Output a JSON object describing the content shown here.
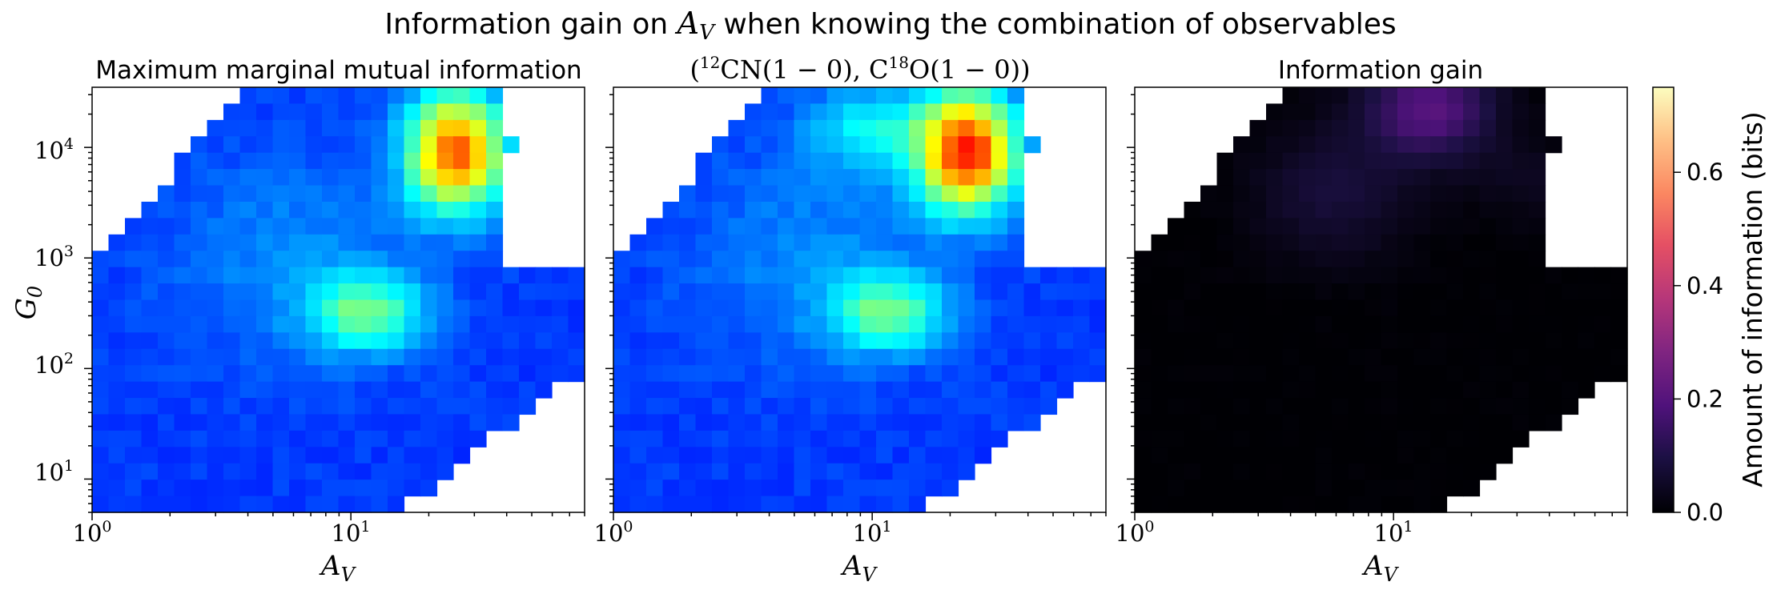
{
  "figure": {
    "title_prefix": "Information gain on ",
    "title_var": "A",
    "title_var_sub": "V",
    "title_suffix": " when knowing the combination of observables",
    "panel_titles": [
      "Maximum marginal mutual information",
      "",
      "Information gain"
    ],
    "middle_title_parts": {
      "open": "(",
      "sup1": "12",
      "mol1": "CN",
      "trans1": "(1 − 0), C",
      "sup2": "18",
      "mol2": "O",
      "trans2": "(1 − 0))"
    }
  },
  "chart_data": [
    {
      "type": "heatmap",
      "title": "Maximum marginal mutual information",
      "xlabel": "A_V",
      "ylabel": "G_0",
      "xscale": "log",
      "yscale": "log",
      "xlim": [
        1,
        80
      ],
      "ylim": [
        5,
        35000
      ],
      "x_tick_labels": [
        "10^0",
        "10^1"
      ],
      "y_tick_labels": [
        "10^1",
        "10^2",
        "10^3",
        "10^4"
      ],
      "colormap": "jet",
      "grid": false,
      "features": [
        {
          "name": "peak",
          "log_av": 1.4,
          "log_g0": 4.15,
          "value": 0.85
        },
        {
          "name": "secondary",
          "log_av": 1.08,
          "log_g0": 2.45,
          "value": 0.55
        }
      ]
    },
    {
      "type": "heatmap",
      "title": "(12CN(1 − 0), C18O(1 − 0))",
      "xlabel": "A_V",
      "xscale": "log",
      "yscale": "log",
      "xlim": [
        1,
        80
      ],
      "ylim": [
        5,
        35000
      ],
      "x_tick_labels": [
        "10^0",
        "10^1"
      ],
      "colormap": "jet",
      "grid": false,
      "features": [
        {
          "name": "peak",
          "log_av": 1.4,
          "log_g0": 4.1,
          "value": 0.95
        },
        {
          "name": "secondary",
          "log_av": 1.08,
          "log_g0": 2.45,
          "value": 0.55
        }
      ]
    },
    {
      "type": "heatmap",
      "title": "Information gain",
      "xlabel": "A_V",
      "xscale": "log",
      "yscale": "log",
      "xlim": [
        1,
        80
      ],
      "ylim": [
        5,
        35000
      ],
      "x_tick_labels": [
        "10^0",
        "10^1"
      ],
      "colormap": "magma",
      "grid": false,
      "features": [
        {
          "name": "peak",
          "log_av": 1.18,
          "log_g0": 4.3,
          "value": 0.28
        }
      ],
      "colorbar": {
        "label": "Amount of information (bits)",
        "range": [
          0.0,
          0.75
        ],
        "ticks": [
          0.0,
          0.2,
          0.4,
          0.6
        ],
        "tick_labels": [
          "0.0",
          "0.2",
          "0.4",
          "0.6"
        ]
      }
    }
  ]
}
